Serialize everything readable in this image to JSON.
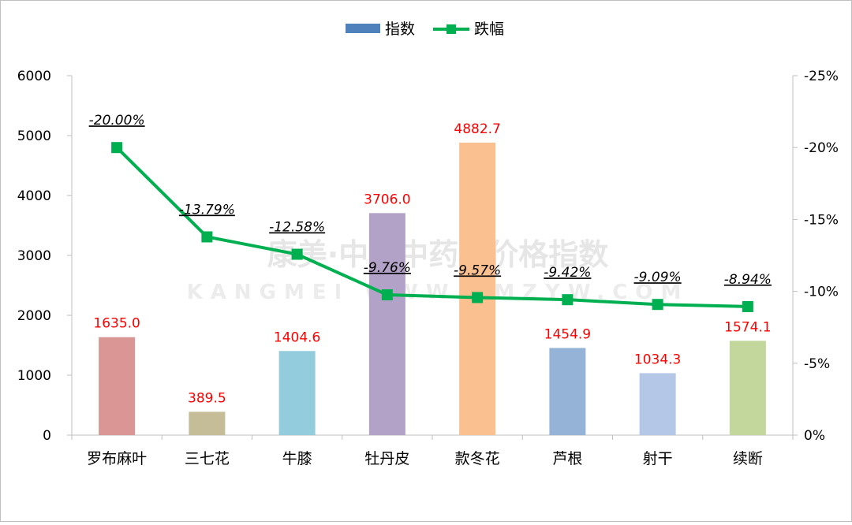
{
  "chart_data": {
    "type": "bar+line",
    "categories": [
      "罗布麻叶",
      "三七花",
      "牛膝",
      "牡丹皮",
      "款冬花",
      "芦根",
      "射干",
      "续断"
    ],
    "series": [
      {
        "name": "指数",
        "type": "bar",
        "axis": "left",
        "values": [
          1635.0,
          389.5,
          1404.6,
          3706.0,
          4882.7,
          1454.9,
          1034.3,
          1574.1
        ],
        "value_labels": [
          "1635.0",
          "389.5",
          "1404.6",
          "3706.0",
          "4882.7",
          "1454.9",
          "1034.3",
          "1574.1"
        ],
        "colors": [
          "#d99694",
          "#c4bd97",
          "#93cddd",
          "#b3a2c7",
          "#fac090",
          "#95b3d7",
          "#b4c7e7",
          "#c3d69b"
        ],
        "legend_color": "#4f81bd",
        "label_color": "#ff0000"
      },
      {
        "name": "跌幅",
        "type": "line",
        "axis": "right",
        "values": [
          -20.0,
          -13.79,
          -12.58,
          -9.76,
          -9.57,
          -9.42,
          -9.09,
          -8.94
        ],
        "value_labels": [
          "-20.00%",
          "-13.79%",
          "-12.58%",
          "-9.76%",
          "-9.57%",
          "-9.42%",
          "-9.09%",
          "-8.94%"
        ],
        "color": "#00b050"
      }
    ],
    "left_axis": {
      "min": 0,
      "max": 6000,
      "ticks": [
        0,
        1000,
        2000,
        3000,
        4000,
        5000,
        6000
      ],
      "tick_labels": [
        "0",
        "1000",
        "2000",
        "3000",
        "4000",
        "5000",
        "6000"
      ]
    },
    "right_axis": {
      "min": -25,
      "max": 0,
      "reversed": true,
      "ticks": [
        0,
        -5,
        -10,
        -15,
        -20,
        -25
      ],
      "tick_labels": [
        "0%",
        "-5%",
        "-10%",
        "-15%",
        "-20%",
        "-25%"
      ]
    },
    "legend": {
      "position": "top-center",
      "entries": [
        "指数",
        "跌幅"
      ]
    },
    "grid": false,
    "watermark": {
      "line1": "康美·中国中药材价格指数",
      "line2": "KANGMEI WWW.KMZYW.COM"
    }
  }
}
